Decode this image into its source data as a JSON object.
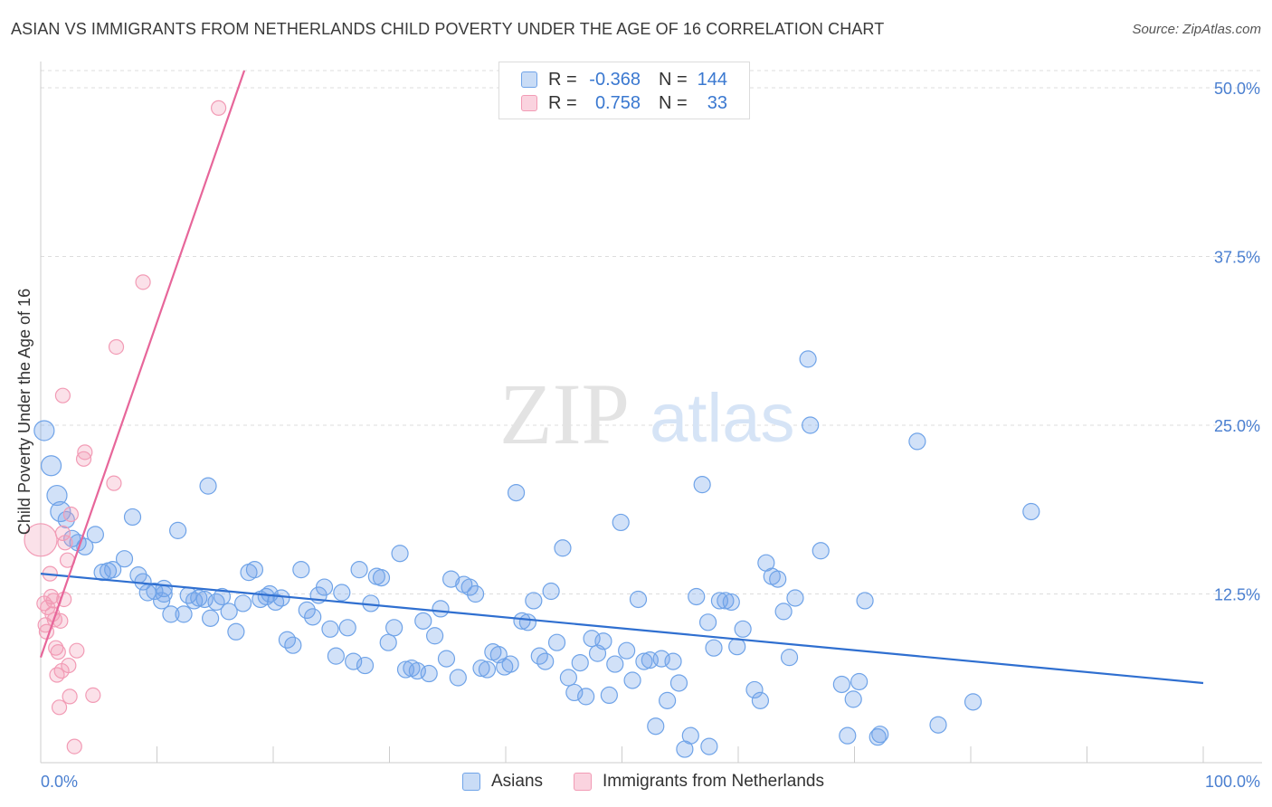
{
  "title": "ASIAN VS IMMIGRANTS FROM NETHERLANDS CHILD POVERTY UNDER THE AGE OF 16 CORRELATION CHART",
  "source": "Source: ZipAtlas.com",
  "watermark": {
    "zip": "ZIP",
    "atlas": "atlas"
  },
  "colors": {
    "asian": "#6fa3e8",
    "asian_line": "#2f6fd0",
    "neth": "#f29bb5",
    "neth_line": "#e7669a",
    "accent": "#4a7fd0"
  },
  "legend": {
    "rows": [
      {
        "r_label": "R =",
        "r_value": "-0.368",
        "n_label": "N =",
        "n_value": "144"
      },
      {
        "r_label": "R =",
        "r_value": "0.758",
        "n_label": "N =",
        "n_value": "33"
      }
    ]
  },
  "bottom_legend": {
    "asians": "Asians",
    "neth": "Immigrants from Netherlands"
  },
  "chart_data": {
    "type": "scatter",
    "xlabel": "",
    "ylabel": "Child Poverty Under the Age of 16",
    "x_tick_labels": [
      "0.0%",
      "100.0%"
    ],
    "y_tick_labels": [
      "12.5%",
      "25.0%",
      "37.5%",
      "50.0%"
    ],
    "y_ticks": [
      12.5,
      25.0,
      37.5,
      50.0
    ],
    "xlim": [
      0,
      100
    ],
    "ylim": [
      0,
      50
    ],
    "grid": "horizontal dashed",
    "legend_placement": "top-center",
    "series": [
      {
        "name": "Asians",
        "trend": {
          "x": [
            0,
            100
          ],
          "y": [
            14.0,
            5.9
          ]
        },
        "points": [
          [
            0.3,
            24.6
          ],
          [
            0.9,
            22.0
          ],
          [
            1.4,
            19.8
          ],
          [
            1.7,
            18.6
          ],
          [
            2.2,
            18.0
          ],
          [
            2.7,
            16.6
          ],
          [
            3.2,
            16.3
          ],
          [
            3.8,
            16.0
          ],
          [
            4.7,
            16.9
          ],
          [
            5.3,
            14.1
          ],
          [
            5.8,
            14.2
          ],
          [
            6.2,
            14.3
          ],
          [
            7.2,
            15.1
          ],
          [
            7.9,
            18.2
          ],
          [
            8.4,
            13.9
          ],
          [
            8.8,
            13.4
          ],
          [
            9.2,
            12.6
          ],
          [
            9.8,
            12.7
          ],
          [
            10.4,
            12.0
          ],
          [
            10.6,
            12.9
          ],
          [
            11.2,
            11.0
          ],
          [
            11.8,
            17.2
          ],
          [
            12.3,
            11.0
          ],
          [
            12.7,
            12.4
          ],
          [
            13.2,
            12.0
          ],
          [
            13.6,
            12.2
          ],
          [
            14.1,
            12.1
          ],
          [
            14.6,
            10.7
          ],
          [
            15.1,
            11.9
          ],
          [
            14.4,
            20.5
          ],
          [
            15.6,
            12.3
          ],
          [
            16.2,
            11.2
          ],
          [
            16.8,
            9.7
          ],
          [
            17.4,
            11.8
          ],
          [
            17.9,
            14.1
          ],
          [
            18.4,
            14.3
          ],
          [
            18.9,
            12.1
          ],
          [
            19.4,
            12.3
          ],
          [
            19.7,
            12.5
          ],
          [
            20.2,
            11.9
          ],
          [
            20.7,
            12.2
          ],
          [
            21.2,
            9.1
          ],
          [
            21.7,
            8.7
          ],
          [
            22.4,
            14.3
          ],
          [
            22.9,
            11.3
          ],
          [
            23.4,
            10.8
          ],
          [
            23.9,
            12.4
          ],
          [
            24.4,
            13.0
          ],
          [
            24.9,
            9.9
          ],
          [
            25.4,
            7.9
          ],
          [
            25.9,
            12.6
          ],
          [
            26.4,
            10.0
          ],
          [
            26.9,
            7.5
          ],
          [
            27.4,
            14.3
          ],
          [
            27.9,
            7.2
          ],
          [
            28.4,
            11.8
          ],
          [
            28.9,
            13.8
          ],
          [
            29.3,
            13.7
          ],
          [
            29.9,
            8.9
          ],
          [
            30.4,
            10.0
          ],
          [
            30.9,
            15.5
          ],
          [
            31.4,
            6.9
          ],
          [
            31.9,
            7.0
          ],
          [
            32.4,
            6.8
          ],
          [
            32.9,
            10.5
          ],
          [
            33.4,
            6.6
          ],
          [
            33.9,
            9.4
          ],
          [
            34.4,
            11.4
          ],
          [
            34.9,
            7.7
          ],
          [
            35.3,
            13.6
          ],
          [
            35.9,
            6.3
          ],
          [
            36.4,
            13.2
          ],
          [
            36.9,
            13.0
          ],
          [
            37.4,
            12.5
          ],
          [
            37.9,
            7.0
          ],
          [
            38.4,
            6.9
          ],
          [
            38.9,
            8.2
          ],
          [
            39.4,
            8.0
          ],
          [
            39.9,
            7.1
          ],
          [
            40.4,
            7.3
          ],
          [
            40.9,
            20.0
          ],
          [
            41.4,
            10.5
          ],
          [
            41.9,
            10.4
          ],
          [
            42.4,
            12.0
          ],
          [
            42.9,
            7.9
          ],
          [
            43.4,
            7.5
          ],
          [
            43.9,
            12.7
          ],
          [
            44.4,
            8.9
          ],
          [
            44.9,
            15.9
          ],
          [
            45.4,
            6.3
          ],
          [
            45.9,
            5.2
          ],
          [
            46.4,
            7.4
          ],
          [
            46.9,
            4.9
          ],
          [
            47.4,
            9.2
          ],
          [
            47.9,
            8.1
          ],
          [
            48.4,
            9.0
          ],
          [
            48.9,
            5.0
          ],
          [
            49.4,
            7.3
          ],
          [
            49.9,
            17.8
          ],
          [
            50.4,
            8.3
          ],
          [
            50.9,
            6.1
          ],
          [
            51.4,
            12.1
          ],
          [
            51.9,
            7.5
          ],
          [
            52.4,
            7.6
          ],
          [
            52.9,
            2.7
          ],
          [
            53.4,
            7.7
          ],
          [
            53.9,
            4.6
          ],
          [
            54.4,
            7.5
          ],
          [
            54.9,
            5.9
          ],
          [
            55.4,
            1.0
          ],
          [
            55.9,
            2.0
          ],
          [
            56.4,
            12.3
          ],
          [
            56.9,
            20.6
          ],
          [
            57.4,
            10.4
          ],
          [
            57.9,
            8.5
          ],
          [
            58.4,
            12.0
          ],
          [
            58.9,
            12.0
          ],
          [
            59.4,
            11.9
          ],
          [
            59.9,
            8.6
          ],
          [
            60.4,
            9.9
          ],
          [
            61.4,
            5.4
          ],
          [
            61.9,
            4.6
          ],
          [
            62.4,
            14.8
          ],
          [
            62.9,
            13.8
          ],
          [
            63.4,
            13.6
          ],
          [
            63.9,
            11.2
          ],
          [
            64.4,
            7.8
          ],
          [
            64.9,
            12.2
          ],
          [
            66.0,
            29.9
          ],
          [
            66.2,
            25.0
          ],
          [
            67.1,
            15.7
          ],
          [
            68.9,
            5.8
          ],
          [
            69.4,
            2.0
          ],
          [
            69.9,
            4.7
          ],
          [
            70.4,
            6.0
          ],
          [
            70.9,
            12.0
          ],
          [
            72.2,
            2.1
          ],
          [
            75.4,
            23.8
          ],
          [
            77.2,
            2.8
          ],
          [
            80.2,
            4.5
          ],
          [
            85.2,
            18.6
          ],
          [
            72.0,
            1.9
          ],
          [
            57.5,
            1.2
          ],
          [
            10.6,
            12.5
          ]
        ]
      },
      {
        "name": "Immigrants from Netherlands",
        "trend": {
          "x": [
            0,
            17
          ],
          "y": [
            7.8,
            50.0
          ]
        },
        "points": [
          [
            0.0,
            16.5
          ],
          [
            0.3,
            11.8
          ],
          [
            0.4,
            10.2
          ],
          [
            0.5,
            9.7
          ],
          [
            0.6,
            11.5
          ],
          [
            0.8,
            14.0
          ],
          [
            0.9,
            12.3
          ],
          [
            1.0,
            11.0
          ],
          [
            1.1,
            12.0
          ],
          [
            1.2,
            10.6
          ],
          [
            1.3,
            8.5
          ],
          [
            1.4,
            6.5
          ],
          [
            1.5,
            8.2
          ],
          [
            1.6,
            4.1
          ],
          [
            1.7,
            10.5
          ],
          [
            1.8,
            6.8
          ],
          [
            1.9,
            17.0
          ],
          [
            2.0,
            12.1
          ],
          [
            2.1,
            16.3
          ],
          [
            2.3,
            15.0
          ],
          [
            2.4,
            7.2
          ],
          [
            2.6,
            18.4
          ],
          [
            2.5,
            4.9
          ],
          [
            2.9,
            1.2
          ],
          [
            3.1,
            8.3
          ],
          [
            3.7,
            22.5
          ],
          [
            3.8,
            23.0
          ],
          [
            4.5,
            5.0
          ],
          [
            1.9,
            27.2
          ],
          [
            6.3,
            20.7
          ],
          [
            6.5,
            30.8
          ],
          [
            8.8,
            35.6
          ],
          [
            15.3,
            48.5
          ]
        ]
      }
    ]
  }
}
